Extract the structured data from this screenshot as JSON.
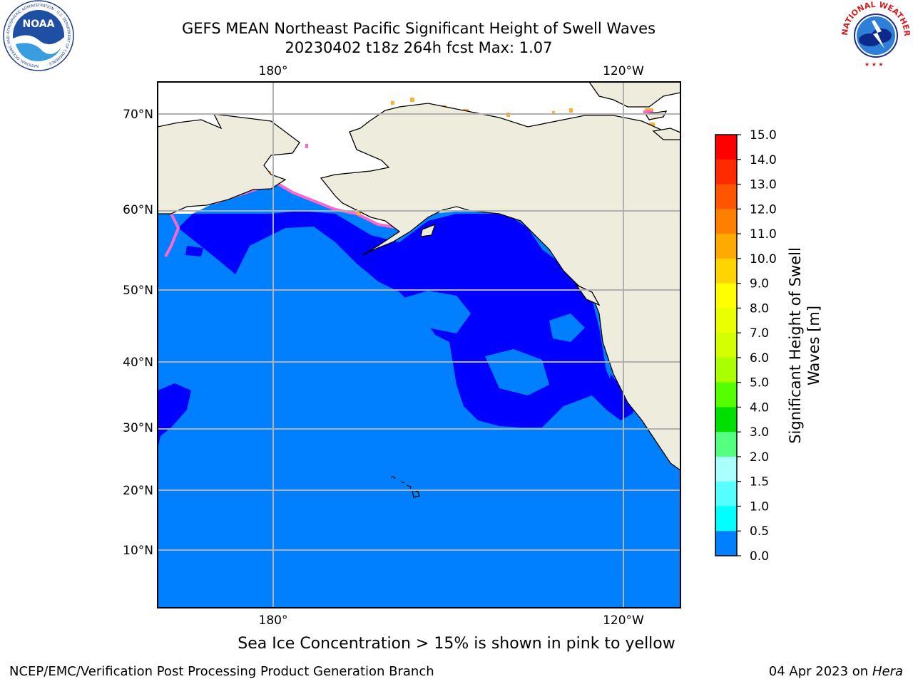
{
  "title": {
    "line1": "GEFS MEAN Northeast Pacific Significant Height of Swell Waves",
    "line2": "20230402 t18z 264h fcst   Max: 1.07"
  },
  "logos": {
    "left": {
      "name": "noaa-logo",
      "text": "NOAA",
      "ring_text": "NATIONAL OCEANIC AND ATMOSPHERIC ADMINISTRATION · U.S. DEPARTMENT OF COMMERCE"
    },
    "right": {
      "name": "nws-logo",
      "ring_text": "NATIONAL WEATHER SERVICE"
    }
  },
  "map": {
    "lon_labels_top": [
      "180°",
      "120°W"
    ],
    "lon_labels_bottom": [
      "180°",
      "120°W"
    ],
    "lat_labels": [
      "70°N",
      "60°N",
      "50°N",
      "40°N",
      "30°N",
      "20°N",
      "10°N"
    ],
    "colors": {
      "ocean_main": "#0080ff",
      "ocean_low": "#0000ff",
      "land": "#eeecdc",
      "ice_mask": "#ffffff",
      "ice_pink": "#ff66cc",
      "ice_orange": "#ffaa33",
      "ice_yellow": "#ffd21a",
      "grid": "#b0b0b0",
      "coast": "#000000"
    }
  },
  "colorbar": {
    "label_line1": "Significant Height of Swell",
    "label_line2": "Waves [m]",
    "ticks": [
      "15.0",
      "14.0",
      "13.0",
      "12.0",
      "11.0",
      "10.0",
      "9.0",
      "8.0",
      "7.0",
      "6.0",
      "5.0",
      "4.0",
      "3.0",
      "2.0",
      "1.5",
      "1.0",
      "0.5",
      "0.0"
    ],
    "bands_top_to_bottom": [
      "#ff0000",
      "#ff2a00",
      "#ff5500",
      "#ff8000",
      "#ffaa00",
      "#ffd400",
      "#ffff00",
      "#eaff00",
      "#d4ff00",
      "#aaff00",
      "#55ff00",
      "#00e000",
      "#55ff80",
      "#aaffff",
      "#55ffff",
      "#00ffff",
      "#0080ff",
      "#0000ff"
    ]
  },
  "caption": "Sea Ice Concentration > 15% is shown in pink to yellow",
  "footer": {
    "left": "NCEP/EMC/Verification Post Processing Product Generation Branch",
    "date": "04 Apr 2023 on ",
    "host": "Hera"
  }
}
